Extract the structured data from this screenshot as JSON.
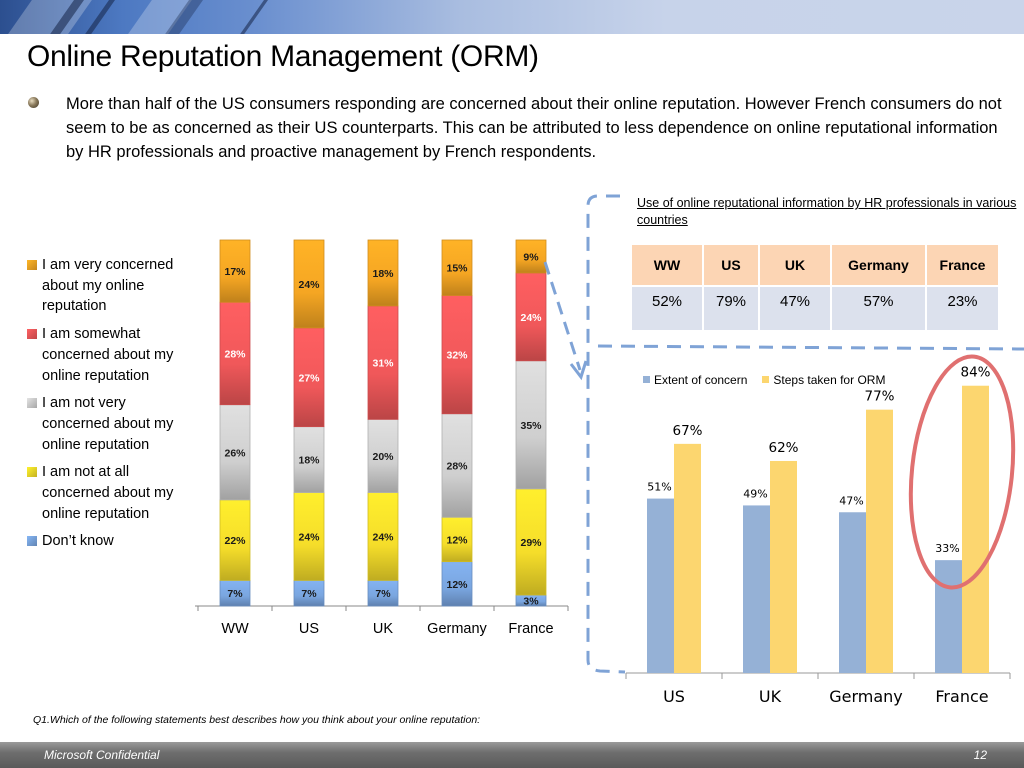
{
  "slide": {
    "title": "Online Reputation Management (ORM)",
    "bullet": "More than half of the US consumers responding are concerned about their online reputation. However French consumers do not seem to be as concerned as their US counterparts. This can be attributed to  less dependence on online reputational information by HR professionals and proactive management by French respondents.",
    "footnote": "Q1.Which of the following statements best describes how you think about your online reputation:",
    "footer_text": "Microsoft Confidential",
    "page_number": "12"
  },
  "hr_table": {
    "title": "Use of online reputational information by HR professionals in various countries",
    "headers": [
      "WW",
      "US",
      "UK",
      "Germany",
      "France"
    ],
    "values": [
      "52%",
      "79%",
      "47%",
      "57%",
      "23%"
    ]
  },
  "chart_data": [
    {
      "type": "bar",
      "stacked": true,
      "percent": true,
      "title": "",
      "xlabel": "",
      "ylabel": "",
      "categories": [
        "WW",
        "US",
        "UK",
        "Germany",
        "France"
      ],
      "legend_position": "left",
      "series": [
        {
          "name": "Don’t know",
          "color": "#7aa6e0",
          "label_color": "#1a1a1a",
          "values": [
            7,
            7,
            7,
            12,
            3
          ]
        },
        {
          "name": "I am not at all concerned about my online reputation",
          "color": "#f5dd2a",
          "label_color": "#1a1a1a",
          "values": [
            22,
            24,
            24,
            12,
            29
          ]
        },
        {
          "name": "I am not very concerned about my online reputation",
          "color": "#cfcfcf",
          "label_color": "#1a1a1a",
          "values": [
            26,
            18,
            20,
            28,
            35
          ]
        },
        {
          "name": "I am somewhat concerned about my online reputation",
          "color": "#f0585a",
          "label_color": "#ffffff",
          "values": [
            28,
            27,
            31,
            32,
            24
          ]
        },
        {
          "name": "I am very concerned about my online reputation",
          "color": "#f5a623",
          "label_color": "#1a1a1a",
          "values": [
            17,
            24,
            18,
            15,
            9
          ]
        }
      ],
      "legend_order": [
        4,
        3,
        2,
        1,
        0
      ]
    },
    {
      "type": "bar",
      "title": "",
      "xlabel": "",
      "ylabel": "",
      "categories": [
        "US",
        "UK",
        "Germany",
        "France"
      ],
      "ylim": [
        0,
        90
      ],
      "grid": false,
      "legend_position": "top",
      "series": [
        {
          "name": "Extent of concern",
          "color": "#95b1d6",
          "values": [
            51,
            49,
            47,
            33
          ]
        },
        {
          "name": "Steps taken for ORM",
          "color": "#fcd66f",
          "values": [
            67,
            62,
            77,
            84
          ]
        }
      ],
      "highlight": {
        "category": "France",
        "color": "#e07070"
      }
    }
  ],
  "callout": {
    "color": "#7fa3d6"
  }
}
